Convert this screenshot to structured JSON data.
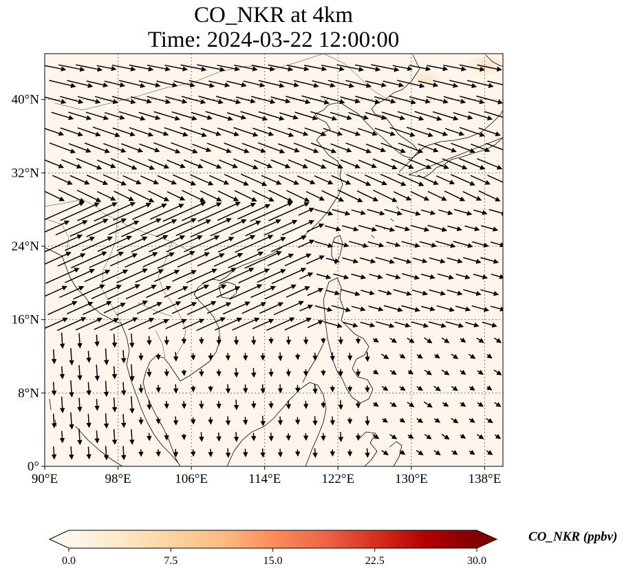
{
  "title": {
    "line1": "CO_NKR at 4km",
    "line2": "Time: 2024-03-22 12:00:00"
  },
  "map": {
    "lon_range": [
      90,
      140
    ],
    "lat_range": [
      0,
      45
    ],
    "lon_ticks": [
      "90°E",
      "98°E",
      "106°E",
      "114°E",
      "122°E",
      "130°E",
      "138°E"
    ],
    "lat_ticks": [
      "0°",
      "8°N",
      "16°N",
      "24°N",
      "32°N",
      "40°N"
    ],
    "gridlines": true,
    "background_color": "#fff5eb",
    "coastline_color": "#000000"
  },
  "colorbar": {
    "label": "CO_NKR (ppbv)",
    "ticks": [
      "0.0",
      "7.5",
      "15.0",
      "22.5",
      "30.0"
    ],
    "range": [
      0,
      30
    ],
    "extend": "both",
    "colormap": "OrRd",
    "stops": [
      "#fff7ec",
      "#fee8c8",
      "#fdd49e",
      "#fdbb84",
      "#fc8d59",
      "#ef6548",
      "#d7301f",
      "#b30000",
      "#7f0000"
    ]
  }
}
